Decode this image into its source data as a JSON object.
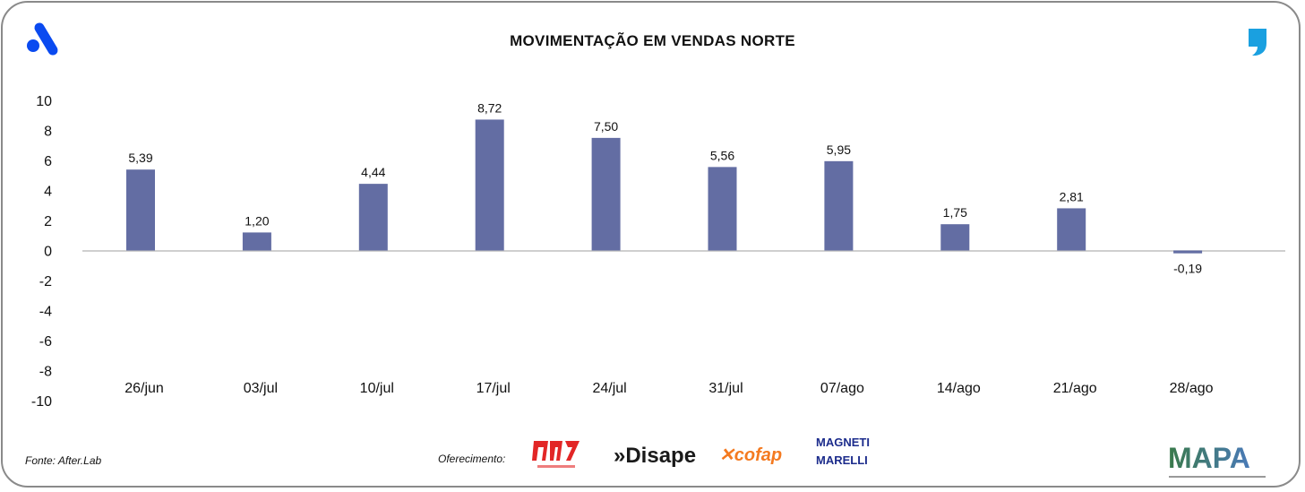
{
  "header": {
    "title": "MOVIMENTAÇÃO EM VENDAS NORTE"
  },
  "footer": {
    "source": "Fonte: After.Lab",
    "sponsor_label": "Oferecimento:",
    "sponsors": [
      "RMP",
      "Disape",
      "cofap",
      "MAGNETI MARELLI"
    ],
    "brand": "MAPA"
  },
  "colors": {
    "bar": "#636da3",
    "logo_blue": "#0a4af0",
    "logo_cyan": "#1aa0e0",
    "axis": "#bfbfbf"
  },
  "chart_data": {
    "type": "bar",
    "title": "MOVIMENTAÇÃO EM VENDAS NORTE",
    "categories": [
      "26/jun",
      "03/jul",
      "10/jul",
      "17/jul",
      "24/jul",
      "31/jul",
      "07/ago",
      "14/ago",
      "21/ago",
      "28/ago"
    ],
    "values": [
      5.39,
      1.2,
      4.44,
      8.72,
      7.5,
      5.56,
      5.95,
      1.75,
      2.81,
      -0.19
    ],
    "data_labels": [
      "5,39",
      "1,20",
      "4,44",
      "8,72",
      "7,50",
      "5,56",
      "5,95",
      "1,75",
      "2,81",
      "-0,19"
    ],
    "ylim": [
      -10,
      10
    ],
    "yticks": [
      "10",
      "8",
      "6",
      "4",
      "2",
      "0",
      "-2",
      "-4",
      "-6",
      "-8",
      "-10"
    ],
    "grid": false,
    "legend": "none"
  }
}
